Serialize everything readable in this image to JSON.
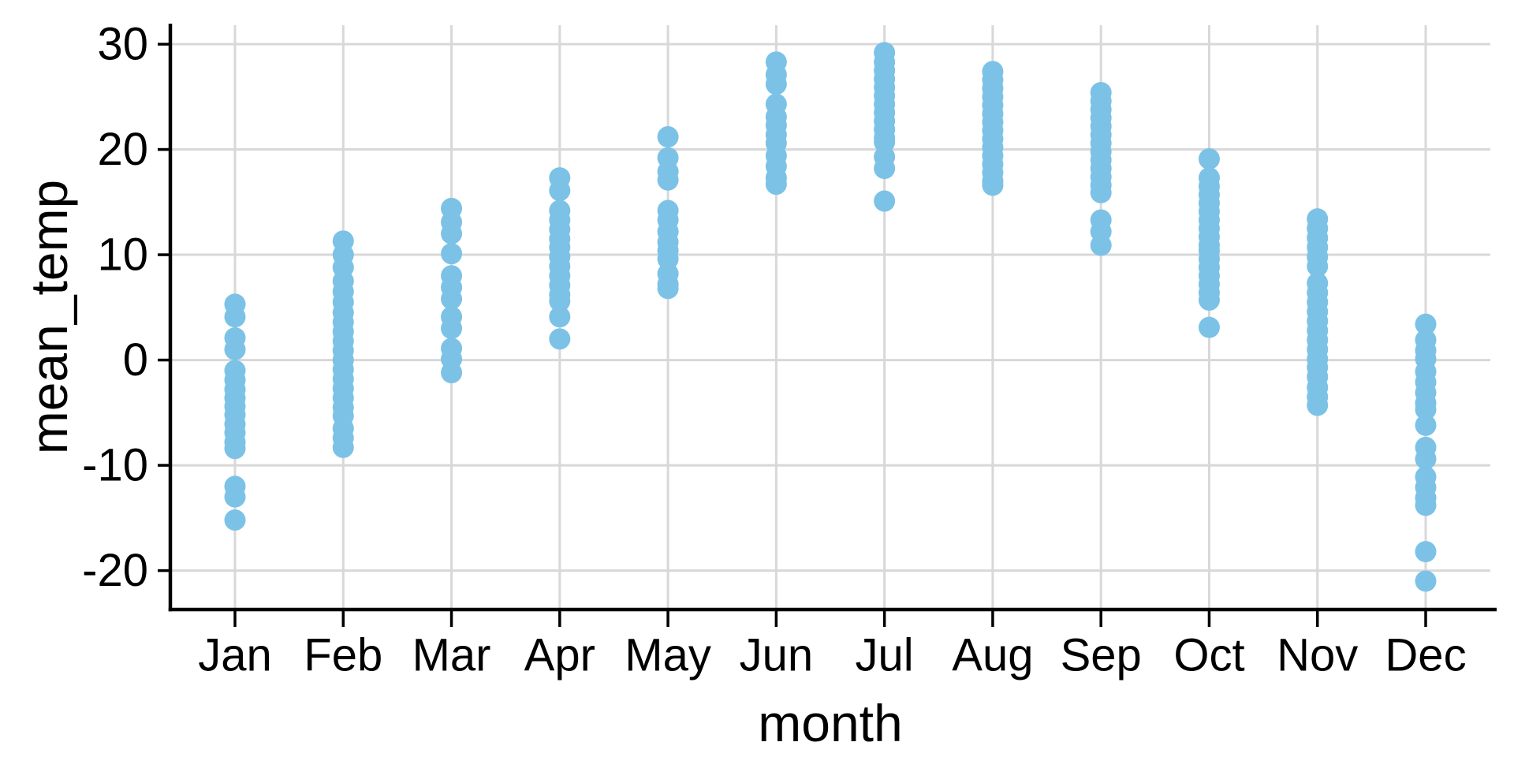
{
  "figure": {
    "background": "#FFFFFF"
  },
  "chart_data": {
    "type": "scatter",
    "variant": "strip-plot",
    "title": "",
    "xlabel": "month",
    "ylabel": "mean_temp",
    "categories": [
      "Jan",
      "Feb",
      "Mar",
      "Apr",
      "May",
      "Jun",
      "Jul",
      "Aug",
      "Sep",
      "Oct",
      "Nov",
      "Dec"
    ],
    "y_ticks": [
      30,
      20,
      10,
      0,
      -10,
      -20
    ],
    "ylim": [
      -23.7,
      31.8
    ],
    "grid": true,
    "legend": "none",
    "point_color": "#7CC2E6",
    "grid_color": "#D8D8D8",
    "axis_color": "#000000",
    "text_color": "#000000",
    "series": [
      {
        "month": "Jan",
        "values": [
          5.3,
          4.1,
          2.1,
          1.0,
          -1.0,
          -1.9,
          -2.8,
          -3.6,
          -4.4,
          -5.2,
          -6.1,
          -6.9,
          -7.8,
          -8.4,
          -12.0,
          -13.0,
          -15.2
        ]
      },
      {
        "month": "Feb",
        "values": [
          11.3,
          10.0,
          8.8,
          7.5,
          6.5,
          5.5,
          4.5,
          3.6,
          2.7,
          1.8,
          0.9,
          0.0,
          -0.9,
          -1.8,
          -2.7,
          -3.6,
          -4.5,
          -5.3,
          -6.5,
          -7.4,
          -8.3
        ]
      },
      {
        "month": "Mar",
        "values": [
          14.4,
          13.1,
          12.0,
          10.1,
          8.0,
          6.9,
          5.8,
          4.1,
          3.0,
          1.1,
          0.1,
          -1.2
        ]
      },
      {
        "month": "Apr",
        "values": [
          17.3,
          16.1,
          14.2,
          13.3,
          12.4,
          11.5,
          10.7,
          9.8,
          8.9,
          8.0,
          7.1,
          6.2,
          5.6,
          4.1,
          2.0
        ]
      },
      {
        "month": "May",
        "values": [
          21.2,
          19.2,
          17.9,
          17.1,
          14.2,
          13.3,
          12.2,
          11.2,
          10.4,
          9.6,
          8.2,
          7.2,
          6.8
        ]
      },
      {
        "month": "Jun",
        "values": [
          28.3,
          27.1,
          26.2,
          24.3,
          23.1,
          22.3,
          21.4,
          20.6,
          19.4,
          18.4,
          17.3,
          16.7
        ]
      },
      {
        "month": "Jul",
        "values": [
          29.2,
          28.3,
          27.5,
          26.7,
          25.9,
          25.1,
          24.3,
          23.5,
          22.7,
          21.9,
          21.1,
          20.7,
          19.3,
          18.2,
          15.1
        ]
      },
      {
        "month": "Aug",
        "values": [
          27.4,
          26.6,
          25.8,
          25.0,
          24.2,
          23.4,
          22.6,
          21.8,
          21.0,
          20.2,
          19.4,
          18.6,
          17.8,
          17.0,
          16.6
        ]
      },
      {
        "month": "Sep",
        "values": [
          25.4,
          24.6,
          23.8,
          23.0,
          22.2,
          21.4,
          20.6,
          19.8,
          19.0,
          18.2,
          17.4,
          16.6,
          15.9,
          13.3,
          12.2,
          10.9
        ]
      },
      {
        "month": "Oct",
        "values": [
          19.1,
          17.3,
          16.5,
          15.7,
          14.9,
          14.1,
          13.3,
          12.5,
          11.7,
          10.9,
          10.4,
          9.6,
          8.8,
          8.0,
          7.2,
          6.4,
          5.7,
          3.1
        ]
      },
      {
        "month": "Nov",
        "values": [
          13.4,
          12.5,
          11.6,
          10.7,
          9.8,
          8.9,
          7.3,
          6.4,
          5.5,
          4.6,
          3.7,
          2.8,
          1.9,
          1.0,
          0.1,
          -0.7,
          -1.6,
          -2.6,
          -3.5,
          -4.3
        ]
      },
      {
        "month": "Dec",
        "values": [
          3.4,
          1.9,
          0.9,
          0.1,
          -1.1,
          -2.1,
          -3.1,
          -4.1,
          -4.7,
          -6.2,
          -8.3,
          -9.4,
          -11.1,
          -12.1,
          -13.1,
          -13.8,
          -18.2,
          -21.0
        ]
      }
    ]
  }
}
